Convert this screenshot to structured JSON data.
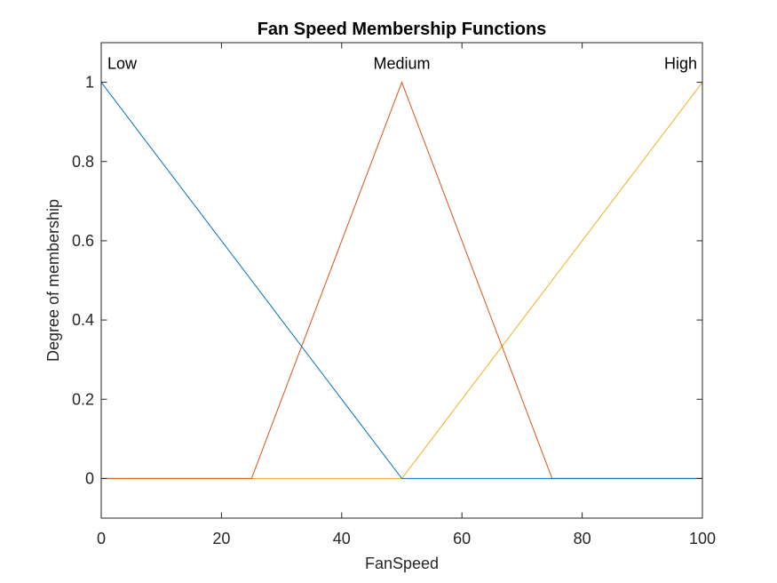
{
  "chart_data": {
    "type": "line",
    "title": "Fan Speed Membership Functions",
    "xlabel": "FanSpeed",
    "ylabel": "Degree of membership",
    "xlim": [
      0,
      100
    ],
    "ylim": [
      -0.1,
      1.1
    ],
    "xticks": [
      0,
      20,
      40,
      60,
      80,
      100
    ],
    "xtick_labels": [
      "0",
      "20",
      "40",
      "60",
      "80",
      "100"
    ],
    "yticks": [
      0,
      0.2,
      0.4,
      0.6,
      0.8,
      1
    ],
    "ytick_labels": [
      "0",
      "0.2",
      "0.4",
      "0.6",
      "0.8",
      "1"
    ],
    "grid": false,
    "box": true,
    "series": [
      {
        "name": "Low",
        "color": "#0072BD",
        "x": [
          0,
          50,
          100
        ],
        "y": [
          1,
          0,
          0
        ],
        "label_anchor": "start"
      },
      {
        "name": "Medium",
        "color": "#D95319",
        "x": [
          0,
          25,
          50,
          75,
          100
        ],
        "y": [
          0,
          0,
          1,
          0,
          0
        ],
        "label_anchor": "middle"
      },
      {
        "name": "High",
        "color": "#EDB120",
        "x": [
          0,
          50,
          100
        ],
        "y": [
          0,
          0,
          1
        ],
        "label_anchor": "end"
      }
    ]
  }
}
